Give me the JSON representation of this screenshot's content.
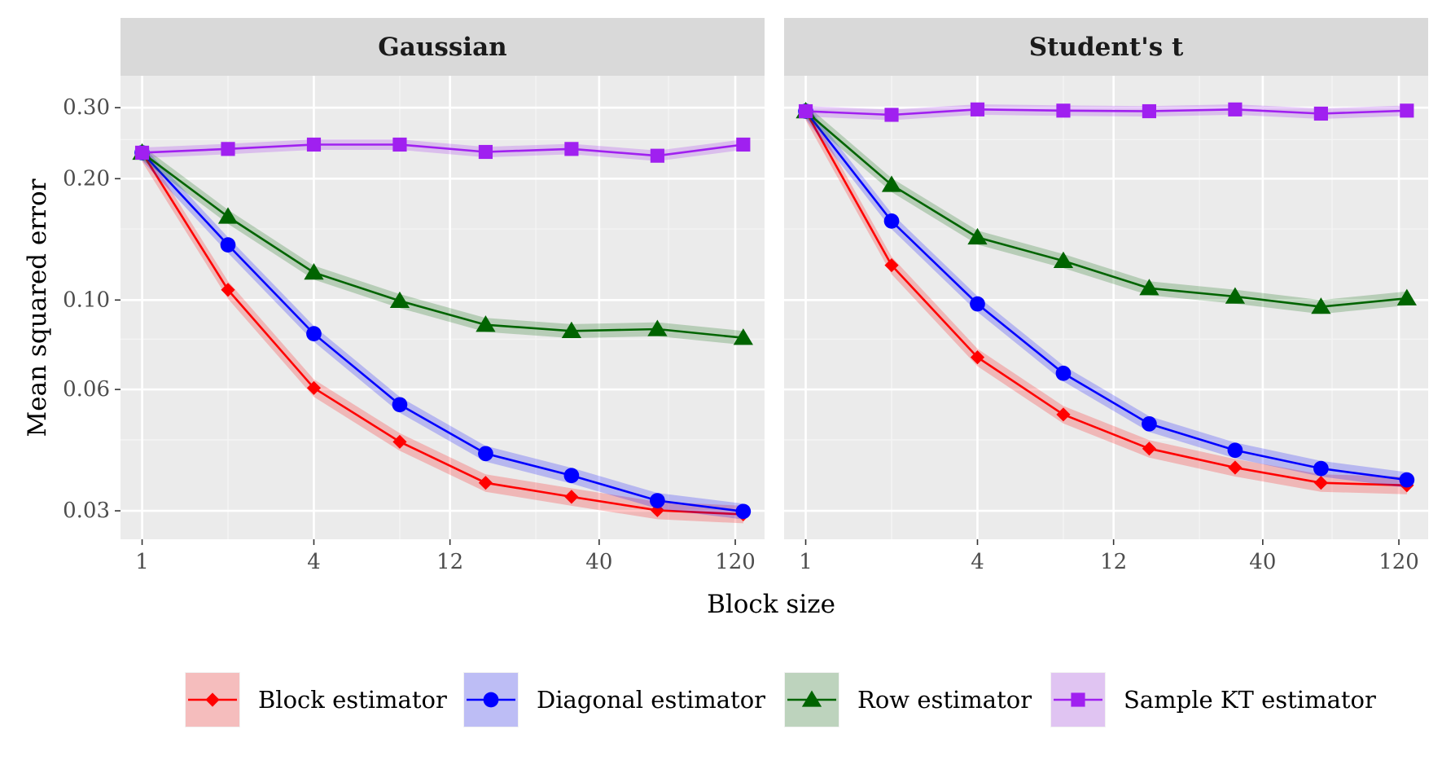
{
  "chart_data": {
    "type": "line",
    "xlabel": "Block size",
    "ylabel": "Mean squared error",
    "x_scale": "log",
    "y_scale": "log",
    "x": [
      1,
      2,
      4,
      8,
      16,
      32,
      64,
      128
    ],
    "xlim": [
      0.84,
      152
    ],
    "ylim": [
      0.0255,
      0.36
    ],
    "x_ticks": [
      1,
      4,
      12,
      40,
      120
    ],
    "x_tick_labels": [
      "1",
      "4",
      "12",
      "40",
      "120"
    ],
    "x_minor_gridlines": [
      2,
      8,
      24,
      70
    ],
    "y_ticks": [
      0.03,
      0.06,
      0.1,
      0.2,
      0.3
    ],
    "y_tick_labels": [
      "0.03",
      "0.06",
      "0.10",
      "0.20",
      "0.30"
    ],
    "y_minor_gridlines": [
      0.045,
      0.08,
      0.15,
      0.25
    ],
    "grid": true,
    "legend_position": "bottom",
    "panels": [
      {
        "title": "Gaussian",
        "series": [
          {
            "name": "Block estimator",
            "color": "#ff0000",
            "marker": "diamond",
            "values": [
              0.232,
              0.106,
              0.0605,
              0.0445,
              0.0352,
              0.0325,
              0.0301,
              0.0294
            ],
            "band": 0.05
          },
          {
            "name": "Diagonal estimator",
            "color": "#0000ff",
            "marker": "circle",
            "values": [
              0.232,
              0.137,
              0.0825,
              0.055,
              0.0416,
              0.0367,
              0.0318,
              0.0299
            ],
            "band": 0.045
          },
          {
            "name": "Row estimator",
            "color": "#006400",
            "marker": "triangle",
            "values": [
              0.232,
              0.161,
              0.117,
              0.0995,
              0.0868,
              0.0838,
              0.0847,
              0.0806
            ],
            "band": 0.04
          },
          {
            "name": "Sample KT estimator",
            "color": "#a020f0",
            "marker": "square",
            "values": [
              0.232,
              0.237,
              0.243,
              0.243,
              0.233,
              0.237,
              0.228,
              0.243
            ],
            "band": 0.03
          }
        ]
      },
      {
        "title": "Student's t",
        "series": [
          {
            "name": "Block estimator",
            "color": "#ff0000",
            "marker": "diamond",
            "values": [
              0.294,
              0.122,
              0.0721,
              0.052,
              0.0428,
              0.0384,
              0.0352,
              0.0347
            ],
            "band": 0.05
          },
          {
            "name": "Diagonal estimator",
            "color": "#0000ff",
            "marker": "circle",
            "values": [
              0.294,
              0.157,
              0.0978,
              0.0658,
              0.0493,
              0.0424,
              0.0382,
              0.0358
            ],
            "band": 0.045
          },
          {
            "name": "Row estimator",
            "color": "#006400",
            "marker": "triangle",
            "values": [
              0.294,
              0.193,
              0.143,
              0.125,
              0.107,
              0.102,
              0.0962,
              0.101
            ],
            "band": 0.04
          },
          {
            "name": "Sample KT estimator",
            "color": "#a020f0",
            "marker": "square",
            "values": [
              0.294,
              0.288,
              0.297,
              0.295,
              0.294,
              0.297,
              0.29,
              0.295
            ],
            "band": 0.03
          }
        ]
      }
    ]
  }
}
